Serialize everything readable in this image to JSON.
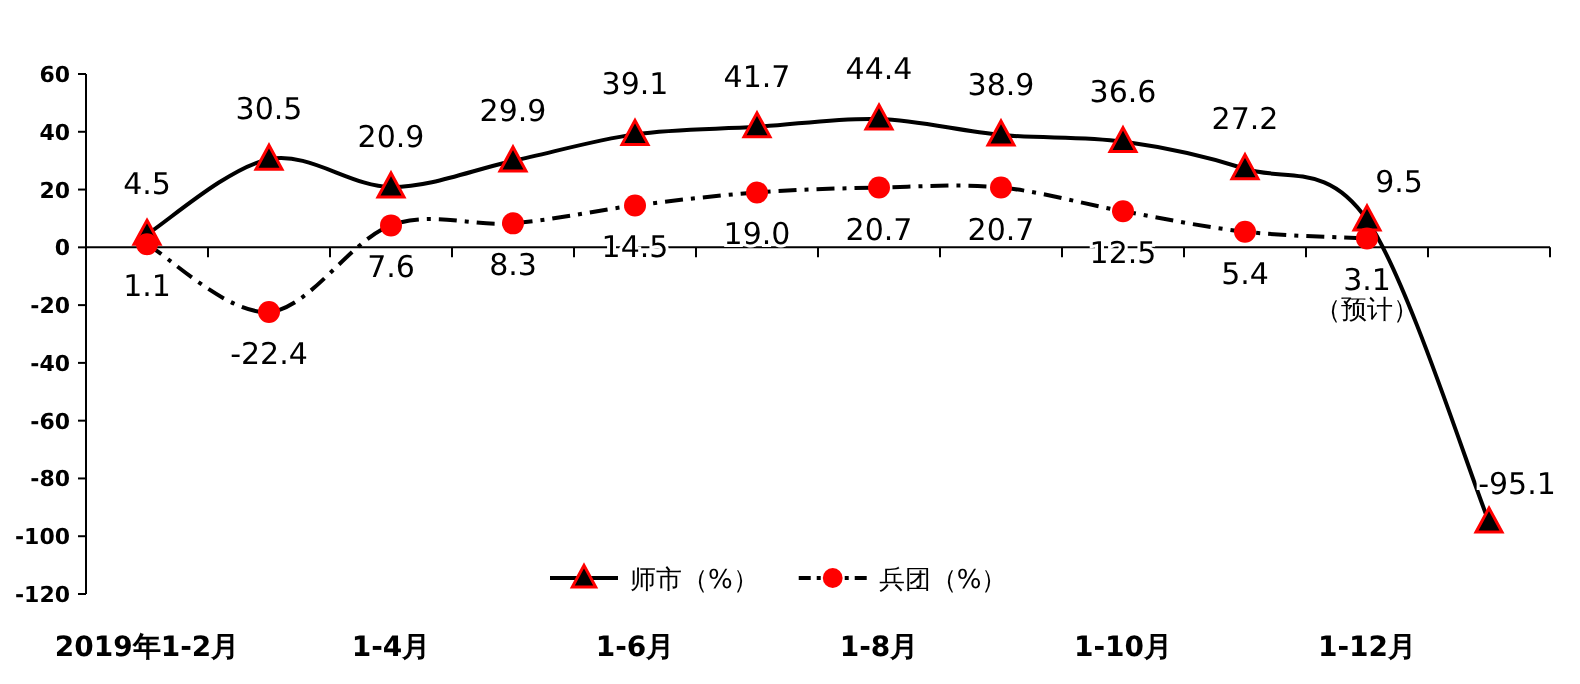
{
  "chart_data": {
    "type": "line",
    "categories": [
      "2019年1-2月",
      null,
      "1-4月",
      null,
      "1-6月",
      null,
      "1-8月",
      null,
      "1-10月",
      null,
      "1-12月",
      null
    ],
    "series": [
      {
        "name": "师市（%）",
        "color": "#000000",
        "marker": "triangle",
        "line_style": "solid",
        "values": [
          4.5,
          30.5,
          20.9,
          29.9,
          39.1,
          41.7,
          44.4,
          38.9,
          36.6,
          27.2,
          9.5,
          -95.1
        ],
        "value_labels": [
          "4.5",
          "30.5",
          "20.9",
          "29.9",
          "39.1",
          "41.7",
          "44.4",
          "38.9",
          "36.6",
          "27.2",
          "9.5",
          "-95.1"
        ]
      },
      {
        "name": "兵团（%）",
        "color": "#ff0000",
        "marker": "circle",
        "line_style": "dashed",
        "values": [
          1.1,
          -22.4,
          7.6,
          8.3,
          14.5,
          19.0,
          20.7,
          20.7,
          12.5,
          5.4,
          3.1,
          null
        ],
        "value_labels": [
          "1.1",
          "-22.4",
          "7.6",
          "8.3",
          "14.5",
          "19.0",
          "20.7",
          "20.7",
          "12.5",
          "5.4",
          "3.1",
          null
        ]
      }
    ],
    "ylim": [
      -120,
      60
    ],
    "yticks": [
      -120,
      -100,
      -80,
      -60,
      -40,
      -20,
      0,
      20,
      40,
      60
    ],
    "legend": "bottom",
    "annotations": [
      {
        "text": "（预计）",
        "x": "1-12月",
        "y": 3.1
      }
    ]
  }
}
